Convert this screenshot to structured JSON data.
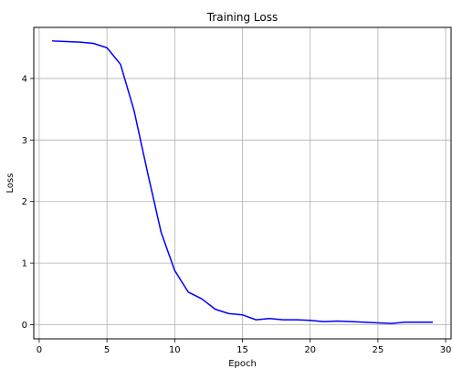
{
  "chart_data": {
    "type": "line",
    "title": "Training Loss",
    "xlabel": "Epoch",
    "ylabel": "Loss",
    "xlim": [
      -0.4,
      30.4
    ],
    "ylim": [
      -0.23,
      4.83
    ],
    "xticks": [
      0,
      5,
      10,
      15,
      20,
      25,
      30
    ],
    "yticks": [
      0,
      1,
      2,
      3,
      4
    ],
    "grid": true,
    "line_color": "#0000ff",
    "series": [
      {
        "x": [
          1,
          2,
          3,
          4,
          5,
          6,
          7,
          8,
          9,
          10,
          11,
          12,
          13,
          14,
          15,
          16,
          17,
          18,
          19,
          20,
          21,
          22,
          23,
          24,
          25,
          26,
          27,
          28,
          29
        ],
        "values": [
          4.61,
          4.6,
          4.59,
          4.57,
          4.5,
          4.23,
          3.48,
          2.47,
          1.5,
          0.88,
          0.53,
          0.42,
          0.25,
          0.18,
          0.16,
          0.08,
          0.1,
          0.08,
          0.08,
          0.07,
          0.05,
          0.06,
          0.05,
          0.04,
          0.03,
          0.02,
          0.04,
          0.04,
          0.04
        ]
      }
    ]
  }
}
